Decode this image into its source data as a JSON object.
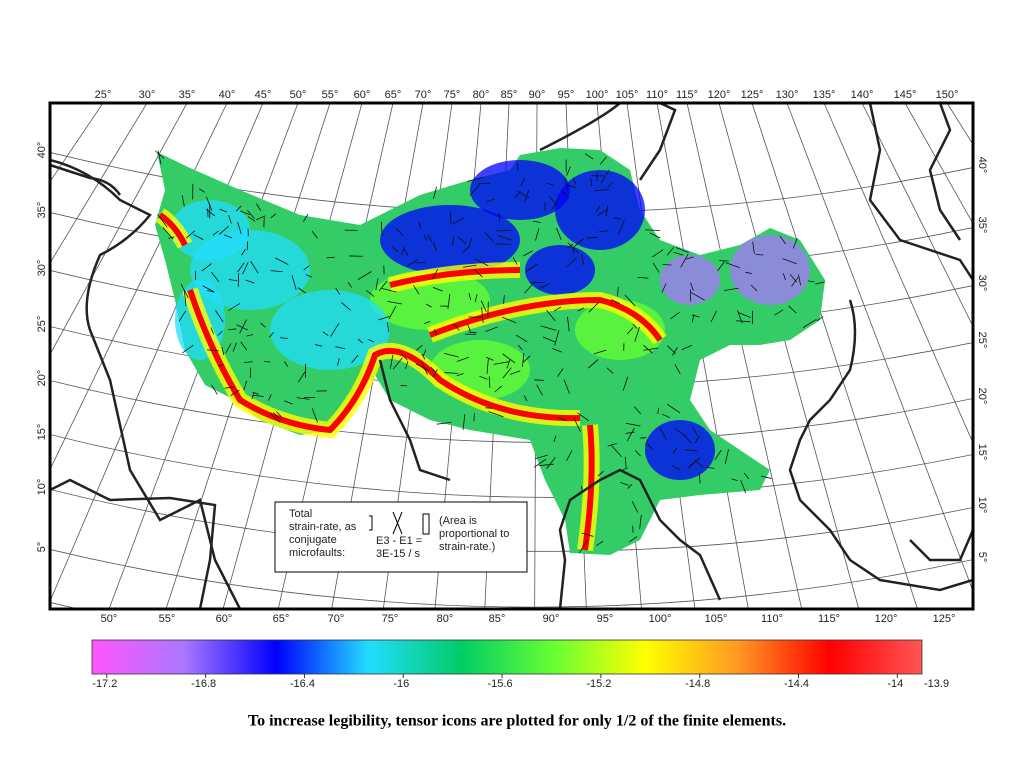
{
  "map": {
    "top_labels": [
      "25°",
      "30°",
      "35°",
      "40°",
      "45°",
      "50°",
      "55°",
      "60°",
      "65°",
      "70°",
      "75°",
      "80°",
      "85°",
      "90°",
      "95°",
      "100°",
      "105°",
      "110°",
      "115°",
      "120°",
      "125°",
      "130°",
      "135°",
      "140°",
      "145°",
      "150°"
    ],
    "bottom_labels": [
      "50°",
      "55°",
      "60°",
      "65°",
      "70°",
      "75°",
      "80°",
      "85°",
      "90°",
      "95°",
      "100°",
      "105°",
      "110°",
      "115°",
      "120°",
      "125°"
    ],
    "left_labels": [
      "40°",
      "35°",
      "30°",
      "25°",
      "20°",
      "15°",
      "10°",
      "5°"
    ],
    "right_labels": [
      "40°",
      "35°",
      "30°",
      "25°",
      "20°",
      "15°",
      "10°",
      "5°"
    ]
  },
  "legend": {
    "description": [
      "Total",
      "strain-rate, as",
      "conjugate",
      "microfaults:"
    ],
    "formula": [
      "E3 - E1 =",
      "3E-15 / s"
    ],
    "note": [
      "(Area is",
      "proportional to",
      "strain-rate.)"
    ]
  },
  "colorbar": {
    "lim": [
      -17.26,
      -13.9
    ],
    "ticks": [
      -17.2,
      -16.8,
      -16.4,
      -16,
      -15.6,
      -15.2,
      -14.8,
      -14.4,
      -14
    ],
    "colors": [
      "#ff55ff",
      "#aa77ff",
      "#0000ff",
      "#22ddff",
      "#00cc66",
      "#66ff33",
      "#ffff00",
      "#ff9922",
      "#ff0000",
      "#ff5555"
    ]
  },
  "caption": "To increase legibility, tensor icons are plotted for only 1/2 of the finite elements."
}
